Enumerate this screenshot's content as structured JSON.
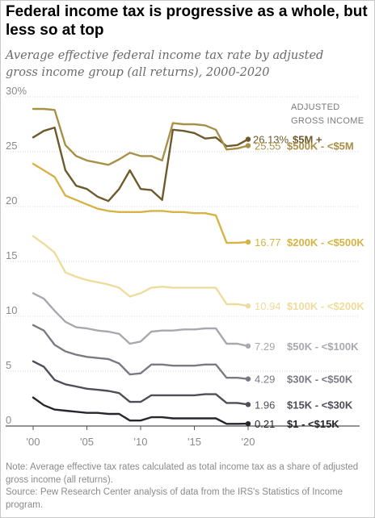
{
  "title": "Federal income tax is progressive as a whole, but less so at top",
  "subtitle": "Average effective federal income tax rate by adjusted gross income group (all returns), 2000-2020",
  "note": "Note: Average effective tax rates calculated as total income tax as a share of adjusted gross income (all returns).",
  "source": "Source: Pew Research Center analysis of data from the IRS's Statistics of Income program.",
  "chart_data": {
    "type": "line",
    "title": "Federal income tax is progressive as a whole, but less so at top",
    "subtitle": "Average effective federal income tax rate by adjusted gross income group (all returns), 2000-2020",
    "legend_title": "ADJUSTED GROSS INCOME",
    "legend_title_lines": [
      "ADJUSTED",
      "GROSS INCOME"
    ],
    "x": [
      2000,
      2001,
      2002,
      2003,
      2004,
      2005,
      2006,
      2007,
      2008,
      2009,
      2010,
      2011,
      2012,
      2013,
      2014,
      2015,
      2016,
      2017,
      2018,
      2019,
      2020
    ],
    "x_ticks": [
      2000,
      2005,
      2010,
      2015,
      2020
    ],
    "x_tick_labels": [
      "'00",
      "'05",
      "'10",
      "'15",
      "'20"
    ],
    "ylim": [
      0,
      30
    ],
    "y_ticks": [
      0,
      5,
      10,
      15,
      20,
      25,
      30
    ],
    "y_tick_labels": [
      "0",
      "5",
      "10",
      "15",
      "20",
      "25",
      "30%"
    ],
    "grid": true,
    "series": [
      {
        "name": "$5M +",
        "end_label": "26.13%",
        "color": "#6e5a2c",
        "values": [
          26.3,
          26.9,
          27.2,
          23.3,
          21.9,
          21.6,
          20.9,
          20.5,
          21.6,
          23.3,
          21.6,
          21.5,
          20.6,
          27.0,
          26.9,
          26.7,
          26.2,
          26.3,
          25.5,
          25.6,
          26.13
        ]
      },
      {
        "name": "$500K - <$5M",
        "end_label": "25.55",
        "color": "#a89048",
        "values": [
          28.9,
          28.9,
          28.8,
          25.6,
          24.6,
          24.2,
          24.0,
          23.8,
          24.3,
          24.9,
          24.6,
          24.6,
          24.2,
          27.6,
          27.5,
          27.5,
          27.4,
          27.0,
          25.2,
          25.3,
          25.55
        ]
      },
      {
        "name": "$200K - <$500K",
        "end_label": "16.77",
        "color": "#d7b345",
        "values": [
          23.9,
          23.3,
          22.7,
          21.0,
          20.6,
          20.2,
          19.8,
          19.6,
          19.5,
          19.5,
          19.5,
          19.6,
          19.6,
          19.5,
          19.5,
          19.4,
          19.4,
          19.2,
          16.7,
          16.7,
          16.77
        ]
      },
      {
        "name": "$100K - <$200K",
        "end_label": "10.94",
        "color": "#eedc9c",
        "values": [
          17.3,
          16.6,
          15.8,
          14.0,
          13.6,
          13.3,
          13.1,
          12.9,
          12.6,
          11.8,
          12.1,
          12.6,
          12.7,
          12.6,
          12.6,
          12.6,
          12.6,
          12.6,
          11.1,
          11.1,
          10.94
        ]
      },
      {
        "name": "$50K - <$100K",
        "end_label": "7.29",
        "color": "#a8a8b0",
        "values": [
          12.1,
          11.6,
          10.5,
          9.5,
          9.0,
          8.9,
          8.7,
          8.6,
          8.4,
          7.5,
          7.7,
          8.6,
          8.7,
          8.7,
          8.8,
          8.8,
          8.9,
          8.9,
          7.5,
          7.5,
          7.29
        ]
      },
      {
        "name": "$30K - <$50K",
        "end_label": "4.29",
        "color": "#7a7a84",
        "values": [
          9.2,
          8.7,
          7.4,
          6.8,
          6.5,
          6.3,
          6.2,
          6.1,
          5.7,
          4.7,
          4.8,
          5.6,
          5.6,
          5.5,
          5.5,
          5.5,
          5.6,
          5.6,
          4.4,
          4.4,
          4.29
        ]
      },
      {
        "name": "$15K - <$30K",
        "end_label": "1.96",
        "color": "#4e4e58",
        "values": [
          5.9,
          5.4,
          4.2,
          3.8,
          3.6,
          3.4,
          3.3,
          3.2,
          3.0,
          2.2,
          2.2,
          2.8,
          2.8,
          2.8,
          2.8,
          2.8,
          2.9,
          2.9,
          2.1,
          2.1,
          1.96
        ]
      },
      {
        "name": "$1 - <$15K",
        "end_label": "0.21",
        "color": "#26262c",
        "values": [
          2.6,
          1.9,
          1.5,
          1.4,
          1.3,
          1.2,
          1.2,
          1.1,
          1.1,
          0.5,
          0.5,
          0.8,
          0.8,
          0.7,
          0.7,
          0.7,
          0.7,
          0.7,
          0.2,
          0.2,
          0.21
        ]
      }
    ]
  }
}
